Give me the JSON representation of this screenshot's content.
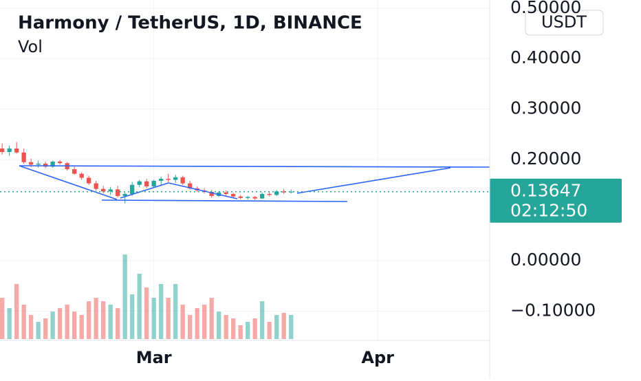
{
  "header": {
    "title": "Harmony / TetherUS, 1D, BINANCE",
    "volume_label": "Vol",
    "currency_button": "USDT"
  },
  "chart_data": {
    "type": "candlestick",
    "x": [
      0,
      1,
      2,
      3,
      4,
      5,
      6,
      7,
      8,
      9,
      10,
      11,
      12,
      13,
      14,
      15,
      16,
      17,
      18,
      19,
      20,
      21,
      22,
      23,
      24,
      25,
      26,
      27,
      28,
      29,
      30,
      31,
      32,
      33,
      34,
      35,
      36,
      37,
      38,
      39,
      40
    ],
    "open": [
      0.222,
      0.215,
      0.222,
      0.214,
      0.195,
      0.19,
      0.192,
      0.186,
      0.196,
      0.193,
      0.181,
      0.172,
      0.164,
      0.153,
      0.142,
      0.137,
      0.141,
      0.128,
      0.132,
      0.15,
      0.157,
      0.147,
      0.158,
      0.162,
      0.16,
      0.165,
      0.153,
      0.143,
      0.139,
      0.136,
      0.128,
      0.135,
      0.132,
      0.127,
      0.124,
      0.126,
      0.123,
      0.132,
      0.13,
      0.137,
      0.135
    ],
    "high": [
      0.232,
      0.228,
      0.235,
      0.222,
      0.202,
      0.198,
      0.196,
      0.198,
      0.199,
      0.195,
      0.186,
      0.175,
      0.168,
      0.158,
      0.148,
      0.146,
      0.148,
      0.135,
      0.156,
      0.16,
      0.162,
      0.16,
      0.166,
      0.172,
      0.17,
      0.168,
      0.158,
      0.147,
      0.143,
      0.14,
      0.138,
      0.139,
      0.134,
      0.13,
      0.128,
      0.128,
      0.135,
      0.136,
      0.14,
      0.142,
      0.141
    ],
    "low": [
      0.21,
      0.208,
      0.212,
      0.192,
      0.185,
      0.184,
      0.183,
      0.184,
      0.19,
      0.178,
      0.17,
      0.16,
      0.15,
      0.138,
      0.133,
      0.13,
      0.125,
      0.113,
      0.128,
      0.145,
      0.143,
      0.145,
      0.15,
      0.155,
      0.154,
      0.15,
      0.14,
      0.136,
      0.133,
      0.125,
      0.126,
      0.129,
      0.125,
      0.122,
      0.121,
      0.12,
      0.122,
      0.127,
      0.128,
      0.132,
      0.133
    ],
    "close": [
      0.215,
      0.222,
      0.214,
      0.195,
      0.19,
      0.192,
      0.186,
      0.196,
      0.193,
      0.181,
      0.172,
      0.164,
      0.153,
      0.142,
      0.137,
      0.141,
      0.128,
      0.132,
      0.15,
      0.157,
      0.147,
      0.158,
      0.162,
      0.16,
      0.165,
      0.153,
      0.143,
      0.139,
      0.136,
      0.128,
      0.135,
      0.132,
      0.127,
      0.124,
      0.126,
      0.123,
      0.132,
      0.13,
      0.137,
      0.135,
      0.13647
    ],
    "volume": [
      60,
      45,
      80,
      50,
      35,
      25,
      30,
      40,
      45,
      50,
      40,
      35,
      55,
      60,
      55,
      50,
      45,
      123,
      65,
      95,
      75,
      60,
      80,
      60,
      80,
      50,
      35,
      45,
      50,
      60,
      40,
      35,
      30,
      20,
      25,
      30,
      55,
      25,
      35,
      38,
      35
    ],
    "volume_lim": [
      0,
      130
    ],
    "up_color": "#26a69a",
    "down_color": "#ef5350",
    "xlim": [
      -0.3,
      67.5
    ],
    "xticks": [
      {
        "value": 21,
        "label": "Mar"
      },
      {
        "value": 52,
        "label": "Apr"
      }
    ],
    "ylim": [
      -0.158,
      0.516
    ],
    "yticks": [
      {
        "value": 0.5,
        "label": "0.50000"
      },
      {
        "value": 0.4,
        "label": "0.40000"
      },
      {
        "value": 0.3,
        "label": "0.30000"
      },
      {
        "value": 0.2,
        "label": "0.20000"
      },
      {
        "value": 0.0,
        "label": "0.00000"
      },
      {
        "value": -0.1,
        "label": "−0.10000"
      }
    ],
    "grid": true,
    "price_label": "0.13647",
    "countdown": "02:12:50"
  }
}
